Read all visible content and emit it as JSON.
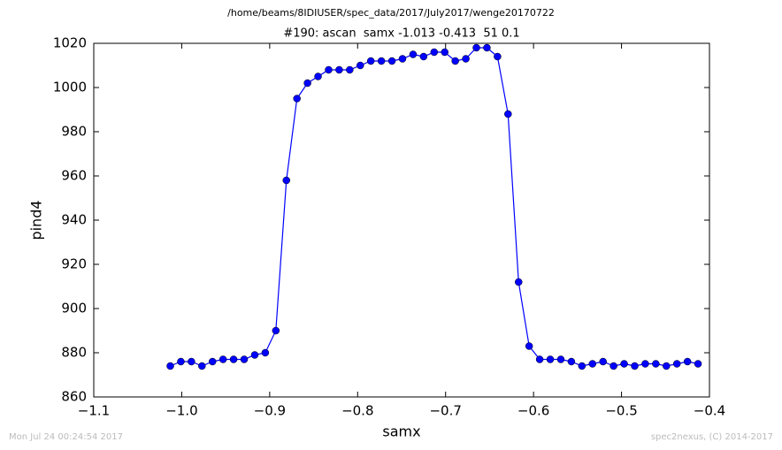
{
  "chart_data": {
    "type": "line",
    "suptitle": "/home/beams/8IDIUSER/spec_data/2017/July2017/wenge20170722",
    "title": "#190: ascan  samx -1.013 -0.413  51 0.1",
    "xlabel": "samx",
    "ylabel": "pind4",
    "footer_left": "Mon Jul 24 00:24:54 2017",
    "footer_right": "spec2nexus, (C) 2014-2017",
    "x": [
      -1.013,
      -1.001,
      -0.989,
      -0.977,
      -0.965,
      -0.953,
      -0.941,
      -0.929,
      -0.917,
      -0.905,
      -0.893,
      -0.881,
      -0.869,
      -0.857,
      -0.845,
      -0.833,
      -0.821,
      -0.809,
      -0.797,
      -0.785,
      -0.773,
      -0.761,
      -0.749,
      -0.737,
      -0.725,
      -0.713,
      -0.701,
      -0.689,
      -0.677,
      -0.665,
      -0.653,
      -0.641,
      -0.629,
      -0.617,
      -0.605,
      -0.593,
      -0.581,
      -0.569,
      -0.557,
      -0.545,
      -0.533,
      -0.521,
      -0.509,
      -0.497,
      -0.485,
      -0.473,
      -0.461,
      -0.449,
      -0.437,
      -0.425,
      -0.413
    ],
    "series": [
      {
        "name": "pind4",
        "color": "#0000ff",
        "values": [
          874,
          876,
          876,
          874,
          876,
          877,
          877,
          877,
          879,
          880,
          890,
          958,
          995,
          1002,
          1005,
          1008,
          1008,
          1008,
          1010,
          1012,
          1012,
          1012,
          1013,
          1015,
          1014,
          1016,
          1016,
          1012,
          1013,
          1018,
          1018,
          1014,
          988,
          912,
          883,
          877,
          877,
          877,
          876,
          874,
          875,
          876,
          874,
          875,
          874,
          875,
          875,
          874,
          875,
          876,
          875
        ]
      }
    ],
    "xlim": [
      -1.1,
      -0.4
    ],
    "xticks": [
      {
        "value": -1.1,
        "label": "−1.1"
      },
      {
        "value": -1.0,
        "label": "−1.0"
      },
      {
        "value": -0.9,
        "label": "−0.9"
      },
      {
        "value": -0.8,
        "label": "−0.8"
      },
      {
        "value": -0.7,
        "label": "−0.7"
      },
      {
        "value": -0.6,
        "label": "−0.6"
      },
      {
        "value": -0.5,
        "label": "−0.5"
      },
      {
        "value": -0.4,
        "label": "−0.4"
      }
    ],
    "ylim": [
      860,
      1020
    ],
    "yticks": [
      860,
      880,
      900,
      920,
      940,
      960,
      980,
      1000,
      1020
    ],
    "grid": false,
    "legend": false
  }
}
